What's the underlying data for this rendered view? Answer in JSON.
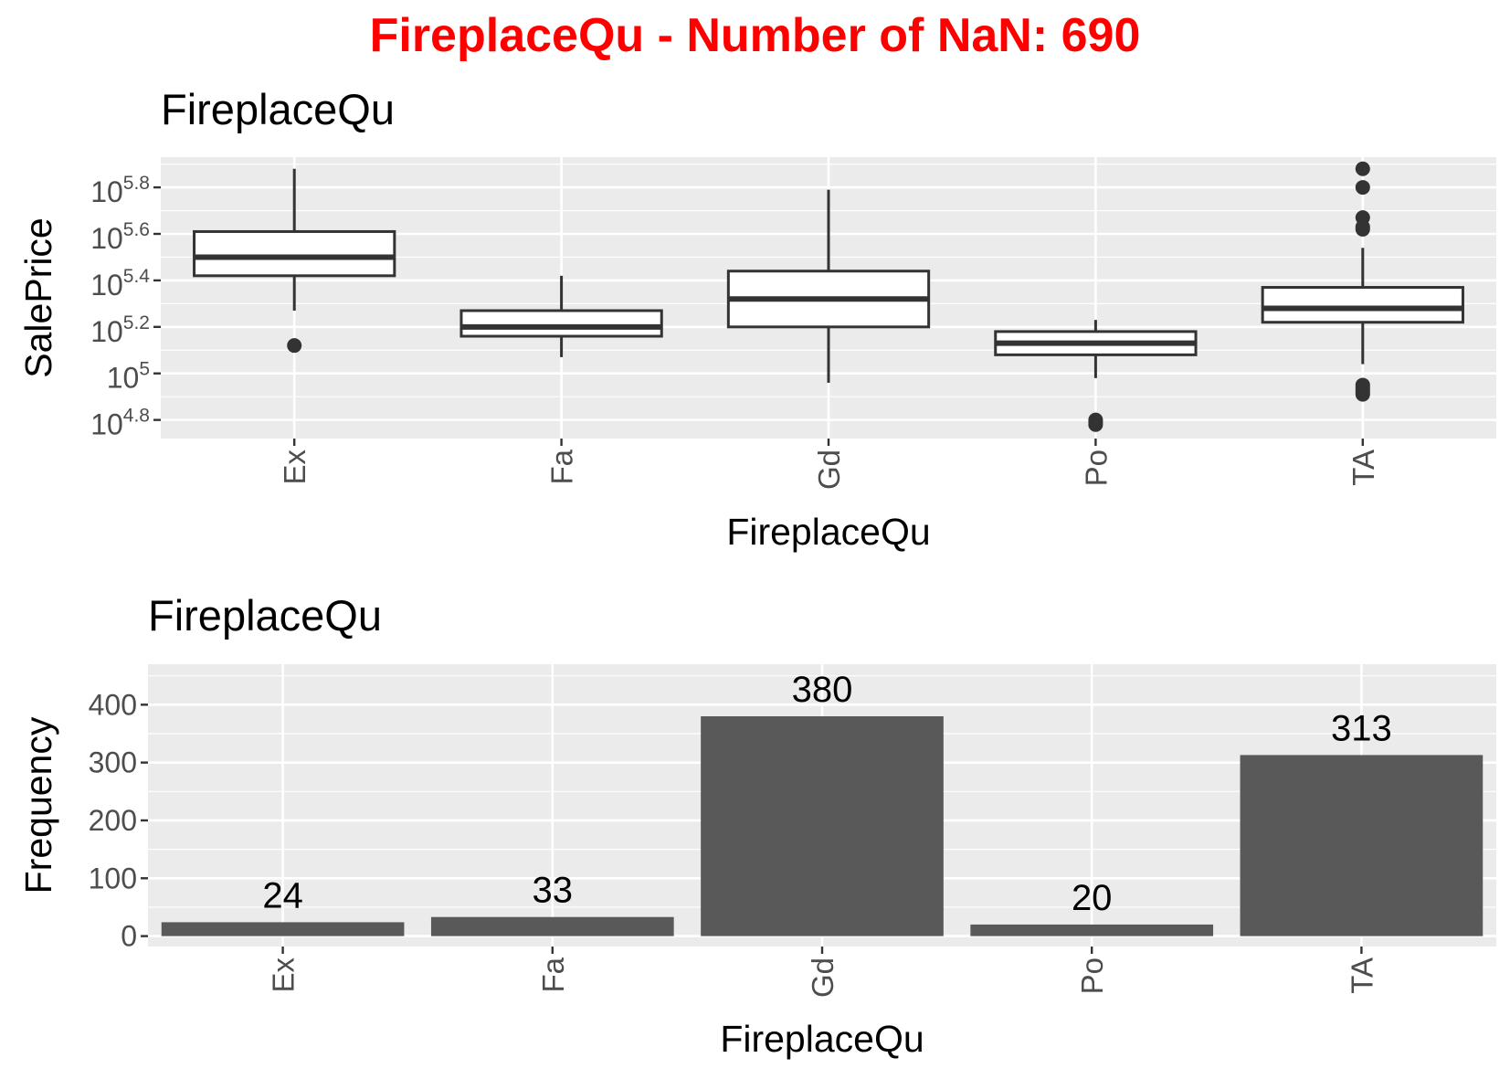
{
  "figure": {
    "title": "FireplaceQu - Number of NaN: 690",
    "title_color": "#FF0000"
  },
  "chart_data": [
    {
      "type": "boxplot",
      "title": "FireplaceQu",
      "xlabel": "FireplaceQu",
      "ylabel": "SalePrice",
      "y_scale": "log10",
      "ylim_log10": [
        4.72,
        5.93
      ],
      "y_ticks": [
        {
          "exp": "4.8",
          "value_log10": 4.8
        },
        {
          "exp": "5",
          "value_log10": 5.0
        },
        {
          "exp": "5.2",
          "value_log10": 5.2
        },
        {
          "exp": "5.4",
          "value_log10": 5.4
        },
        {
          "exp": "5.6",
          "value_log10": 5.6
        },
        {
          "exp": "5.8",
          "value_log10": 5.8
        }
      ],
      "tick_base": "10",
      "categories": [
        "Ex",
        "Fa",
        "Gd",
        "Po",
        "TA"
      ],
      "boxes_log10": [
        {
          "category": "Ex",
          "whisker_low": 5.27,
          "q1": 5.42,
          "median": 5.5,
          "q3": 5.61,
          "whisker_high": 5.88,
          "outliers": [
            5.12
          ]
        },
        {
          "category": "Fa",
          "whisker_low": 5.07,
          "q1": 5.16,
          "median": 5.2,
          "q3": 5.27,
          "whisker_high": 5.42,
          "outliers": []
        },
        {
          "category": "Gd",
          "whisker_low": 4.96,
          "q1": 5.2,
          "median": 5.32,
          "q3": 5.44,
          "whisker_high": 5.79,
          "outliers": []
        },
        {
          "category": "Po",
          "whisker_low": 4.98,
          "q1": 5.08,
          "median": 5.13,
          "q3": 5.18,
          "whisker_high": 5.23,
          "outliers": [
            4.78,
            4.79,
            4.8
          ]
        },
        {
          "category": "TA",
          "whisker_low": 5.04,
          "q1": 5.22,
          "median": 5.28,
          "q3": 5.37,
          "whisker_high": 5.54,
          "outliers": [
            4.91,
            4.92,
            4.93,
            4.94,
            4.95,
            5.62,
            5.63,
            5.67,
            5.8,
            5.88
          ]
        }
      ],
      "grid": true,
      "colors": {
        "panel": "#EBEBEB",
        "grid": "#FFFFFF",
        "box_line": "#333333",
        "box_fill": "#FFFFFF"
      }
    },
    {
      "type": "bar",
      "title": "FireplaceQu",
      "xlabel": "FireplaceQu",
      "ylabel": "Frequency",
      "ylim": [
        0,
        470
      ],
      "y_ticks": [
        0,
        100,
        200,
        300,
        400
      ],
      "categories": [
        "Ex",
        "Fa",
        "Gd",
        "Po",
        "TA"
      ],
      "values": [
        24,
        33,
        380,
        20,
        313
      ],
      "grid": true,
      "colors": {
        "panel": "#EBEBEB",
        "grid": "#FFFFFF",
        "bar": "#595959"
      }
    }
  ]
}
